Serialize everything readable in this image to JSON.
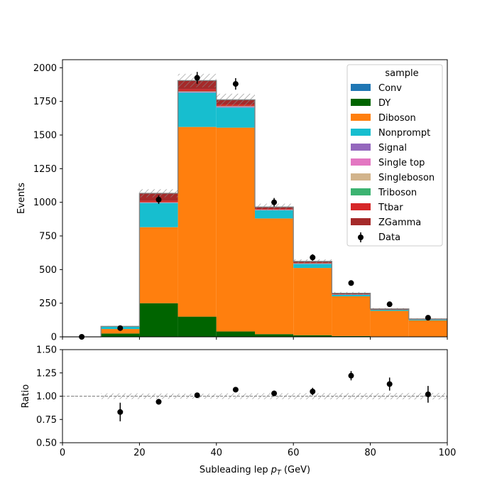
{
  "chart_data": [
    {
      "type": "bar",
      "stacked": true,
      "histogram": true,
      "bin_edges": [
        0,
        10,
        20,
        30,
        40,
        50,
        60,
        70,
        80,
        90,
        100
      ],
      "xlim": [
        0,
        100
      ],
      "ylim": [
        0,
        2060
      ],
      "ylabel": "Events",
      "y_ticks": [
        0,
        250,
        500,
        750,
        1000,
        1250,
        1500,
        1750,
        2000
      ],
      "x_ticks": [
        0,
        20,
        40,
        60,
        80,
        100
      ],
      "legend": {
        "title": "sample",
        "position": "top-right"
      },
      "series": [
        {
          "name": "Conv",
          "color": "#1f77b4",
          "values": [
            0,
            0,
            0,
            0,
            0,
            0,
            0,
            0,
            0,
            0
          ]
        },
        {
          "name": "DY",
          "color": "#006400",
          "values": [
            0,
            25,
            250,
            150,
            40,
            20,
            12,
            6,
            3,
            2
          ]
        },
        {
          "name": "Diboson",
          "color": "#ff7f0e",
          "values": [
            0,
            33,
            565,
            1410,
            1515,
            860,
            500,
            295,
            190,
            120
          ]
        },
        {
          "name": "Nonprompt",
          "color": "#17becf",
          "values": [
            0,
            20,
            180,
            255,
            150,
            60,
            30,
            12,
            8,
            6
          ]
        },
        {
          "name": "Signal",
          "color": "#9467bd",
          "values": [
            0,
            0,
            2,
            4,
            4,
            2,
            1,
            1,
            0,
            0
          ]
        },
        {
          "name": "Single top",
          "color": "#e377c2",
          "values": [
            0,
            0,
            1,
            2,
            2,
            1,
            1,
            0,
            0,
            0
          ]
        },
        {
          "name": "Singleboson",
          "color": "#d2b48c",
          "values": [
            0,
            0,
            1,
            2,
            2,
            1,
            1,
            0,
            0,
            0
          ]
        },
        {
          "name": "Triboson",
          "color": "#3cb371",
          "values": [
            0,
            0,
            1,
            2,
            2,
            1,
            1,
            0,
            0,
            0
          ]
        },
        {
          "name": "Ttbar",
          "color": "#d62728",
          "values": [
            0,
            0,
            12,
            15,
            12,
            5,
            3,
            2,
            1,
            1
          ]
        },
        {
          "name": "ZGamma",
          "color": "#a52a2a",
          "values": [
            0,
            0,
            55,
            65,
            35,
            15,
            12,
            8,
            6,
            4
          ]
        }
      ],
      "mc_uncertainty": [
        0,
        3,
        30,
        50,
        45,
        25,
        15,
        10,
        7,
        5
      ],
      "data": {
        "name": "Data",
        "x": [
          5,
          15,
          25,
          35,
          45,
          55,
          65,
          75,
          85,
          95
        ],
        "y": [
          0,
          65,
          1020,
          1925,
          1880,
          1000,
          590,
          400,
          242,
          142
        ],
        "yerr": [
          0,
          8,
          32,
          44,
          43,
          32,
          24,
          20,
          16,
          12
        ]
      }
    },
    {
      "type": "scatter",
      "xlabel": "Subleading lep $p_T$ (GeV)",
      "ylabel": "Ratio",
      "xlim": [
        0,
        100
      ],
      "ylim": [
        0.5,
        1.5
      ],
      "x_ticks": [
        0,
        20,
        40,
        60,
        80,
        100
      ],
      "y_ticks": [
        0.5,
        0.75,
        1.0,
        1.25,
        1.5
      ],
      "reference_line": 1.0,
      "bin_edges": [
        0,
        10,
        20,
        30,
        40,
        50,
        60,
        70,
        80,
        90,
        100
      ],
      "band_halfwidth": [
        0.005,
        0.03,
        0.028,
        0.027,
        0.03,
        0.032,
        0.033,
        0.033,
        0.033,
        0.035
      ],
      "points": {
        "x": [
          15,
          25,
          35,
          45,
          55,
          65,
          75,
          85,
          95
        ],
        "y": [
          0.83,
          0.94,
          1.01,
          1.07,
          1.03,
          1.05,
          1.22,
          1.13,
          1.02
        ],
        "yerr": [
          0.1,
          0.03,
          0.02,
          0.025,
          0.03,
          0.04,
          0.05,
          0.07,
          0.09
        ]
      }
    }
  ]
}
